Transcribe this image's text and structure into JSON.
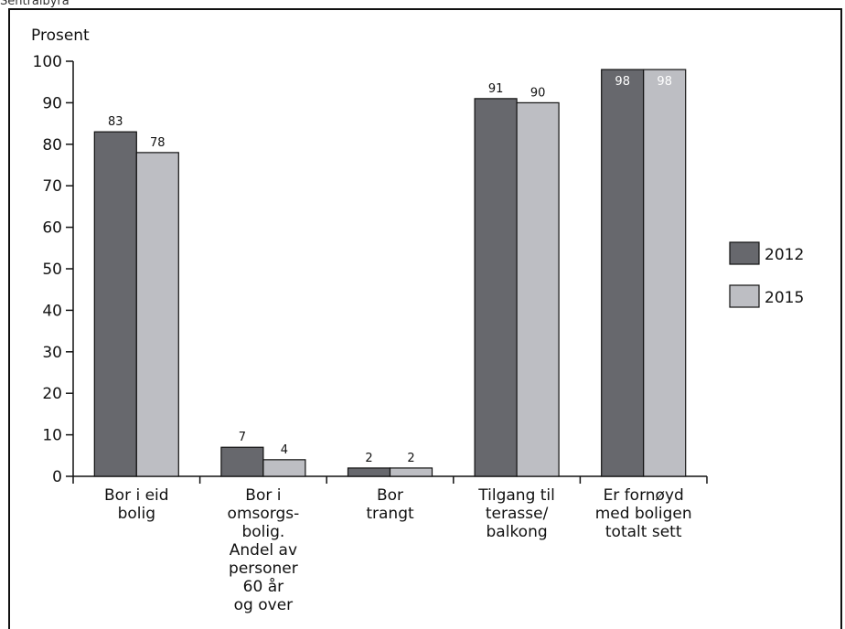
{
  "header_fragment": "Sentralbyrå",
  "chart_data": {
    "type": "bar",
    "title": "",
    "ylabel": "Prosent",
    "xlabel": "",
    "ylim": [
      0,
      100
    ],
    "yticks": [
      0,
      10,
      20,
      30,
      40,
      50,
      60,
      70,
      80,
      90,
      100
    ],
    "grid": false,
    "legend_position": "right",
    "categories": [
      [
        "Bor i eid",
        "bolig"
      ],
      [
        "Bor i",
        "omsorgs-",
        "bolig.",
        "Andel av",
        "personer",
        "60 år",
        "og over"
      ],
      [
        "Bor",
        "trangt"
      ],
      [
        "Tilgang til",
        "terasse/",
        "balkong"
      ],
      [
        "Er fornøyd",
        "med boligen",
        "totalt sett"
      ]
    ],
    "series": [
      {
        "name": "2012",
        "color": "#67686d",
        "values": [
          83,
          7,
          2,
          91,
          98
        ]
      },
      {
        "name": "2015",
        "color": "#bdbec3",
        "values": [
          78,
          4,
          2,
          90,
          98
        ]
      }
    ],
    "value_labels_inside_for": [
      98
    ]
  }
}
